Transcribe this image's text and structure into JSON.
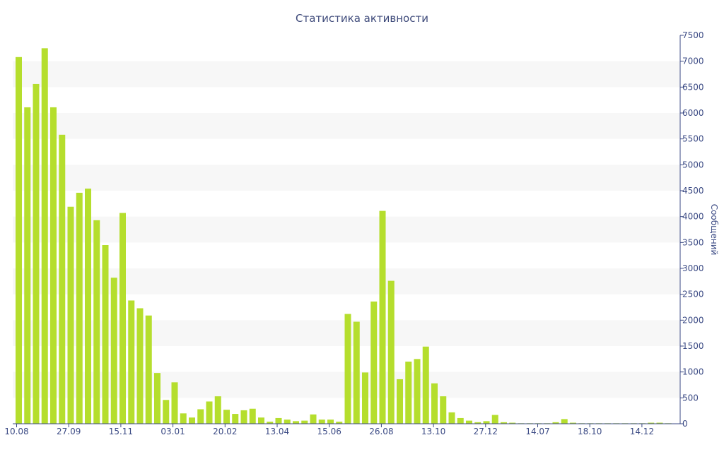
{
  "chart_data": {
    "type": "bar",
    "title": "Статистика активности",
    "ylabel": "Сообщений",
    "ylim": [
      0,
      7500
    ],
    "yticks": [
      0,
      500,
      1000,
      1500,
      2000,
      2500,
      3000,
      3500,
      4000,
      4500,
      5000,
      5500,
      6000,
      6500,
      7000,
      7500
    ],
    "x_tick_labels": [
      "10.08",
      "27.09",
      "15.11",
      "03.01",
      "20.02",
      "13.04",
      "15.06",
      "26.08",
      "13.10",
      "27.12",
      "14.07",
      "18.10",
      "14.12"
    ],
    "bar_color": "#b5de2d",
    "band_color": "#f7f7f7",
    "values": [
      7080,
      6110,
      6560,
      7250,
      6110,
      5580,
      4190,
      4460,
      4540,
      3930,
      3450,
      2820,
      4070,
      2380,
      2230,
      2090,
      980,
      460,
      800,
      200,
      120,
      280,
      430,
      530,
      270,
      190,
      260,
      290,
      120,
      40,
      110,
      80,
      50,
      60,
      180,
      80,
      80,
      40,
      2120,
      1970,
      990,
      2360,
      4110,
      2760,
      860,
      1200,
      1250,
      1490,
      780,
      530,
      220,
      110,
      60,
      30,
      50,
      170,
      30,
      20,
      10,
      10,
      10,
      10,
      30,
      90,
      20,
      10,
      10,
      10,
      10,
      10,
      10,
      10,
      10,
      20,
      20,
      10
    ]
  }
}
